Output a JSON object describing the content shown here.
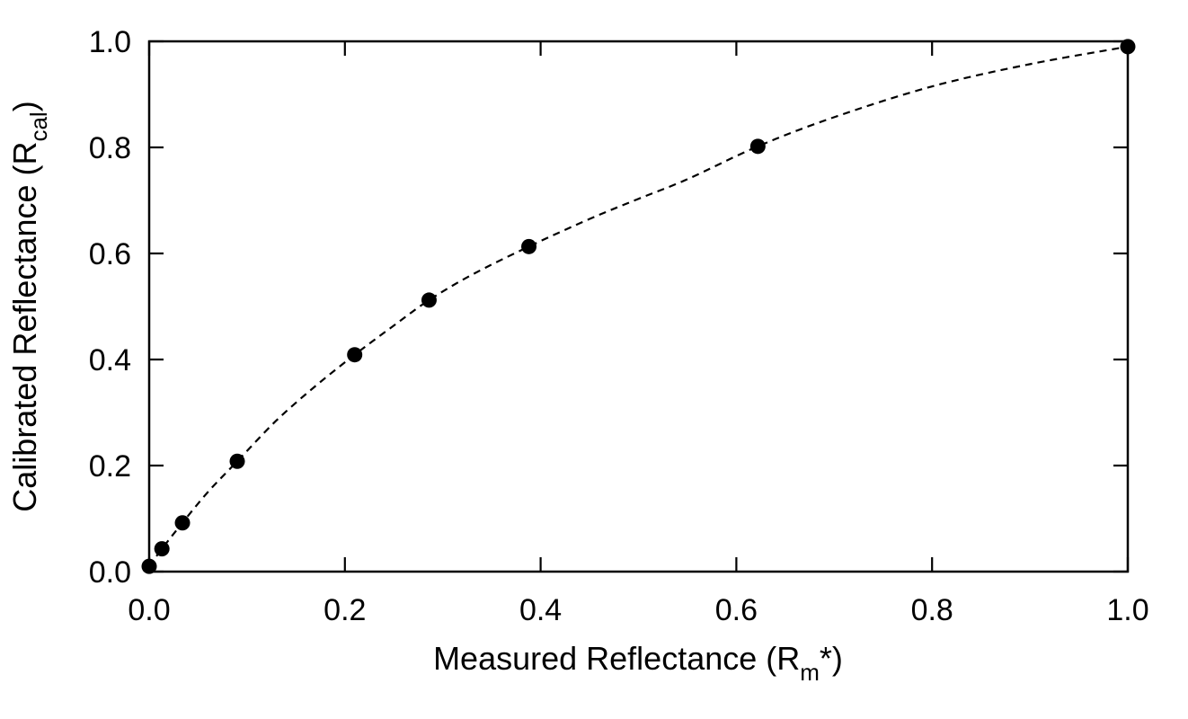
{
  "chart_data": {
    "type": "scatter",
    "xlabel": {
      "main": "Measured Reflectance (R",
      "sub": "m",
      "tail": "*)"
    },
    "ylabel": {
      "main": "Calibrated Reflectance (R",
      "sub": "cal",
      "tail": ")"
    },
    "xlim": [
      0.0,
      1.0
    ],
    "ylim": [
      0.0,
      1.0
    ],
    "xticks": [
      "0.0",
      "0.2",
      "0.4",
      "0.6",
      "0.8",
      "1.0"
    ],
    "yticks": [
      "0.0",
      "0.2",
      "0.4",
      "0.6",
      "0.8",
      "1.0"
    ],
    "grid": false,
    "legend": false,
    "series": [
      {
        "style": "markers",
        "color": "#000000",
        "x": [
          0.0,
          0.013,
          0.034,
          0.09,
          0.21,
          0.286,
          0.388,
          0.622,
          1.0
        ],
        "y": [
          0.01,
          0.043,
          0.092,
          0.208,
          0.409,
          0.512,
          0.613,
          0.802,
          0.99
        ]
      },
      {
        "style": "dashed-line",
        "color": "#000000",
        "x": [
          0.0,
          0.013,
          0.034,
          0.06,
          0.09,
          0.13,
          0.17,
          0.21,
          0.25,
          0.286,
          0.33,
          0.388,
          0.45,
          0.5,
          0.55,
          0.622,
          0.7,
          0.8,
          0.9,
          1.0
        ],
        "y": [
          0.01,
          0.043,
          0.092,
          0.15,
          0.208,
          0.285,
          0.35,
          0.409,
          0.464,
          0.512,
          0.56,
          0.613,
          0.665,
          0.703,
          0.74,
          0.802,
          0.857,
          0.915,
          0.957,
          0.99
        ]
      }
    ]
  }
}
